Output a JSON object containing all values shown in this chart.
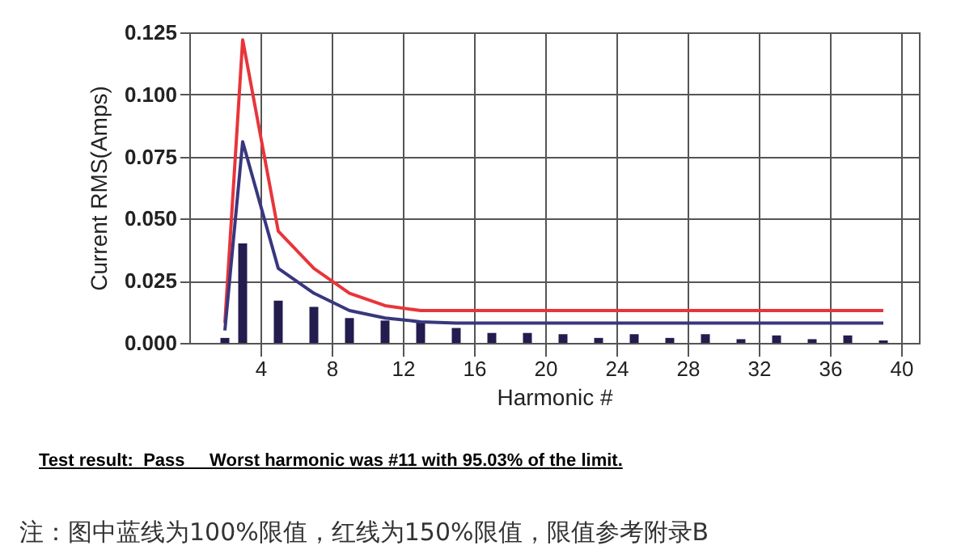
{
  "chart_data": {
    "type": "bar",
    "xlabel": "Harmonic #",
    "ylabel": "Current RMS(Amps)",
    "xlim": [
      0,
      41
    ],
    "xticks": [
      4,
      8,
      12,
      16,
      20,
      24,
      28,
      32,
      36,
      40
    ],
    "ylim": [
      0,
      0.125
    ],
    "yticks": [
      {
        "value": 0,
        "label": "0.000"
      },
      {
        "value": 0.025,
        "label": "0.025"
      },
      {
        "value": 0.05,
        "label": "0.050"
      },
      {
        "value": 0.075,
        "label": "0.075"
      },
      {
        "value": 0.1,
        "label": "0.100"
      },
      {
        "value": 0.125,
        "label": "0.125"
      }
    ],
    "grid": true,
    "marker": "none",
    "line_style": "solid",
    "series": [
      {
        "color": "#231c4e",
        "x": [
          2,
          3,
          5,
          7,
          9,
          11,
          13,
          15,
          17,
          19,
          21,
          23,
          25,
          27,
          29,
          31,
          33,
          35,
          37,
          39
        ],
        "values": [
          0.002,
          0.04,
          0.017,
          0.0145,
          0.01,
          0.009,
          0.0085,
          0.006,
          0.004,
          0.004,
          0.0035,
          0.002,
          0.0035,
          0.002,
          0.0035,
          0.0015,
          0.003,
          0.0015,
          0.003,
          0.001
        ]
      },
      {
        "type": "line",
        "color": "#e8353a",
        "x": [
          2,
          3,
          5,
          7,
          9,
          11,
          13,
          15,
          39
        ],
        "values": [
          0.008,
          0.122,
          0.045,
          0.03,
          0.02,
          0.015,
          0.013,
          0.013,
          0.013
        ]
      },
      {
        "type": "line",
        "color": "#38377e",
        "x": [
          2,
          3,
          5,
          7,
          9,
          11,
          13,
          15,
          39
        ],
        "values": [
          0.005,
          0.081,
          0.03,
          0.02,
          0.013,
          0.01,
          0.0085,
          0.008,
          0.008
        ]
      }
    ],
    "annotations": [
      "Test result:  Pass     Worst harmonic was #11 with 95.03% of the limit.",
      "注：图中蓝线为100%限值，红线为150%限值，限值参考附录B"
    ]
  }
}
